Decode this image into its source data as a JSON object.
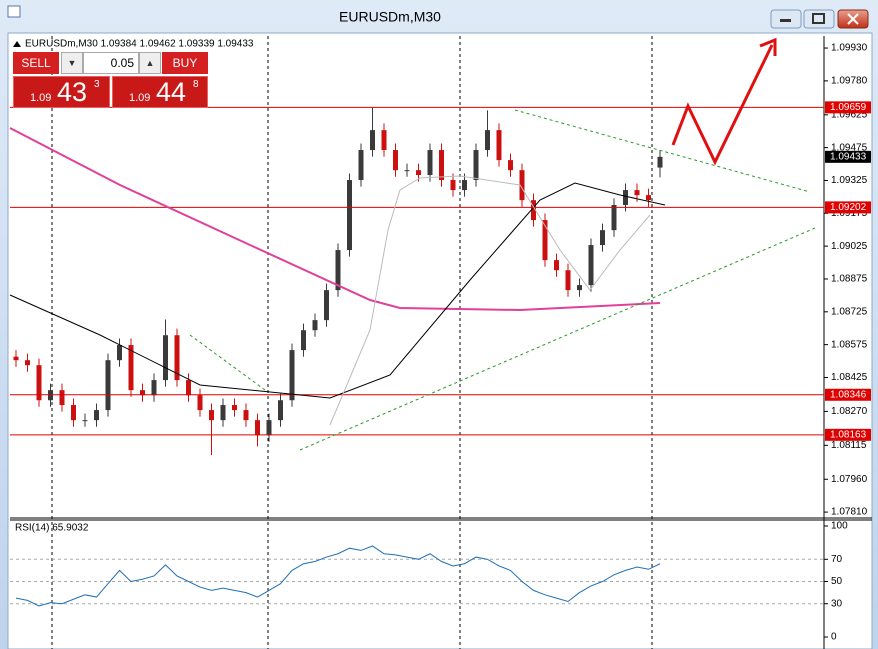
{
  "window": {
    "title": "EURUSDm,M30"
  },
  "trade_panel": {
    "sell": "SELL",
    "buy": "BUY",
    "lots": "0.05",
    "bid": {
      "big": "1.09",
      "pips": "43",
      "fraction": "3"
    },
    "ask": {
      "big": "1.09",
      "pips": "44",
      "fraction": "8"
    }
  },
  "chart_data": [
    {
      "type": "candlestick",
      "title": "EURUSDm,M30  1.09384 1.09462 1.09339 1.09433",
      "open": [
        1.0852,
        1.08504,
        1.08481,
        1.08321,
        1.08367,
        1.08299,
        1.0823,
        1.0823,
        1.08276,
        1.08504,
        1.08573,
        1.08367,
        1.08344,
        1.08413,
        1.08618,
        1.08413,
        1.08344,
        1.08276,
        1.0823,
        1.08299,
        1.08276,
        1.0823,
        1.08161,
        1.0823,
        1.08321,
        1.0855,
        1.08641,
        1.08687,
        1.08824,
        1.09007,
        1.09327,
        1.09464,
        1.09555,
        1.09464,
        1.09372,
        1.09372,
        1.0935,
        1.09464,
        1.09327,
        1.09281,
        1.09327,
        1.09464,
        1.09555,
        1.09418,
        1.09372,
        1.09235,
        1.09144,
        1.08961,
        1.08915,
        1.08824,
        1.08847,
        1.0903,
        1.09098,
        1.09213,
        1.09281,
        1.09258,
        1.09384
      ],
      "high": [
        1.0855,
        1.08534,
        1.08511,
        1.08397,
        1.08397,
        1.08329,
        1.0826,
        1.08306,
        1.08534,
        1.08603,
        1.08603,
        1.08397,
        1.08443,
        1.0869,
        1.08648,
        1.08443,
        1.08374,
        1.08306,
        1.08329,
        1.08329,
        1.08306,
        1.0826,
        1.0826,
        1.08351,
        1.0858,
        1.08671,
        1.08717,
        1.08854,
        1.09037,
        1.09357,
        1.09494,
        1.09659,
        1.09585,
        1.09494,
        1.09402,
        1.09402,
        1.09494,
        1.09494,
        1.09357,
        1.09357,
        1.09494,
        1.09645,
        1.09585,
        1.09448,
        1.09402,
        1.09265,
        1.09174,
        1.08991,
        1.08945,
        1.08877,
        1.0906,
        1.09128,
        1.09243,
        1.09311,
        1.09311,
        1.09288,
        1.09462
      ],
      "low": [
        1.08474,
        1.08451,
        1.08291,
        1.08291,
        1.08269,
        1.082,
        1.082,
        1.082,
        1.08246,
        1.08474,
        1.08337,
        1.08314,
        1.08314,
        1.08383,
        1.08383,
        1.08314,
        1.08246,
        1.0807,
        1.082,
        1.08246,
        1.082,
        1.0811,
        1.08131,
        1.082,
        1.08291,
        1.0852,
        1.08611,
        1.08657,
        1.08794,
        1.08977,
        1.09297,
        1.09434,
        1.09434,
        1.09342,
        1.09342,
        1.0932,
        1.0932,
        1.09297,
        1.09251,
        1.09251,
        1.09297,
        1.09434,
        1.09388,
        1.09342,
        1.09205,
        1.09114,
        1.08931,
        1.08885,
        1.08794,
        1.08794,
        1.08817,
        1.09,
        1.09068,
        1.09183,
        1.09228,
        1.09205,
        1.09339
      ],
      "close": [
        1.08504,
        1.08481,
        1.08321,
        1.08367,
        1.08299,
        1.0823,
        1.0823,
        1.08276,
        1.08504,
        1.08573,
        1.08367,
        1.08344,
        1.08413,
        1.08618,
        1.08413,
        1.08344,
        1.08276,
        1.0823,
        1.08299,
        1.08276,
        1.0823,
        1.08161,
        1.0823,
        1.08321,
        1.0855,
        1.08641,
        1.08687,
        1.08824,
        1.09007,
        1.09327,
        1.09464,
        1.09555,
        1.09464,
        1.09372,
        1.09372,
        1.0935,
        1.09464,
        1.09327,
        1.09281,
        1.09327,
        1.09464,
        1.09555,
        1.09418,
        1.09372,
        1.09235,
        1.09144,
        1.08961,
        1.08915,
        1.08824,
        1.08847,
        1.0903,
        1.09098,
        1.09213,
        1.09281,
        1.09258,
        1.09235,
        1.09433
      ],
      "up_color": "#3a3a3a",
      "down_color": "#cc1010",
      "ylim": [
        1.07783,
        1.09985
      ],
      "yticks": [
        {
          "value": 1.0993,
          "label": "1.09930"
        },
        {
          "value": 1.0978,
          "label": "1.09780"
        },
        1.09625,
        1.09475,
        1.09325,
        1.09175,
        1.09025,
        1.08875,
        1.08725,
        1.08575,
        1.08425,
        {
          "value": 1.0827,
          "label": "1.08270"
        },
        1.08115,
        {
          "value": 1.0796,
          "label": "1.07960"
        },
        {
          "value": 1.0781,
          "label": "1.07810"
        }
      ],
      "levels": [
        1.09659,
        1.09202,
        1.08346,
        1.08163
      ],
      "level_color": "#e00000"
    },
    {
      "type": "line",
      "title": "RSI(14) 65.9032",
      "values": [
        35,
        33,
        28,
        31,
        30,
        34,
        38,
        36,
        48,
        60,
        50,
        52,
        55,
        65,
        55,
        50,
        45,
        42,
        44,
        42,
        40,
        36,
        42,
        48,
        60,
        66,
        68,
        72,
        75,
        80,
        78,
        82,
        75,
        74,
        72,
        70,
        75,
        68,
        64,
        66,
        72,
        70,
        64,
        60,
        50,
        42,
        38,
        35,
        32,
        40,
        46,
        50,
        56,
        60,
        63,
        61,
        66
      ],
      "color": "#1f6fb5",
      "ylim": [
        -7.2,
        105.4
      ],
      "yticks": [
        100,
        70,
        50,
        30,
        0
      ],
      "levels": [
        70,
        50,
        30
      ]
    }
  ]
}
